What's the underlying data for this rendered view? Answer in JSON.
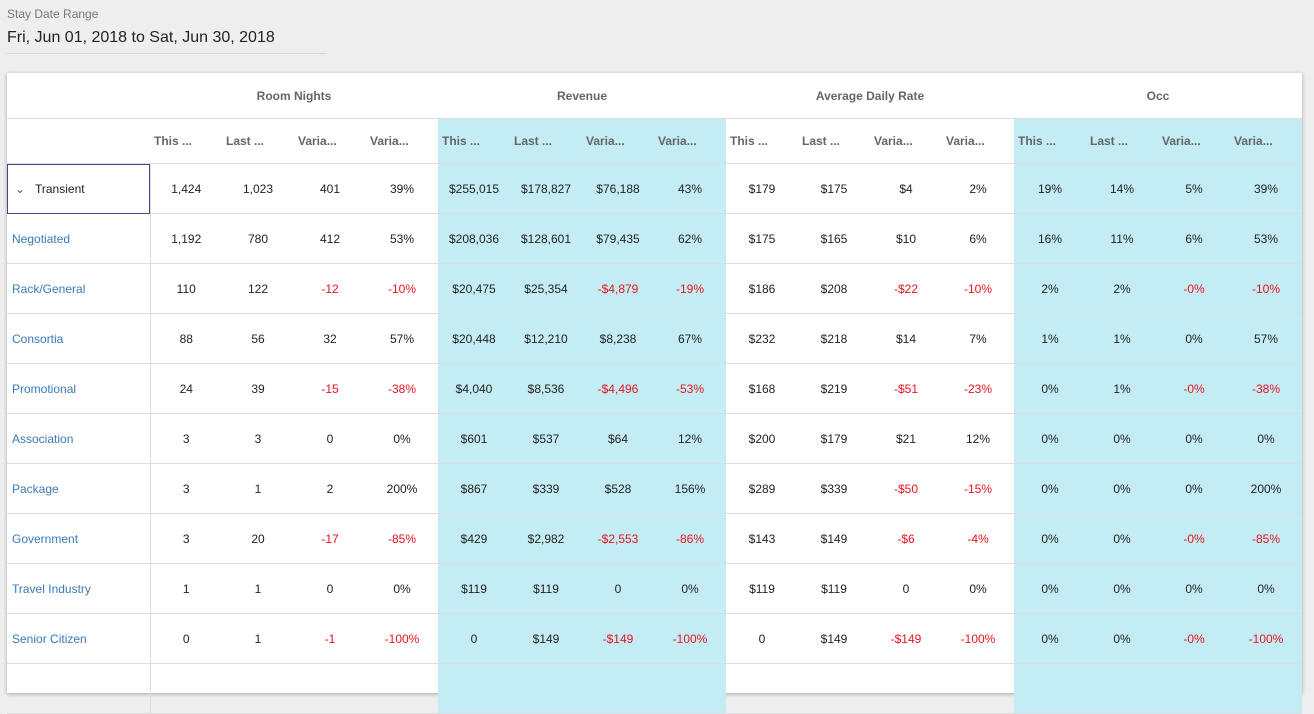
{
  "filter": {
    "label": "Stay Date Range",
    "value": "Fri, Jun 01, 2018 to Sat, Jun 30, 2018"
  },
  "groups": [
    "Room Nights",
    "Revenue",
    "Average Daily Rate",
    "Occ"
  ],
  "subheaders": [
    "This ...",
    "Last ...",
    "Varia...",
    "Varia..."
  ],
  "rows": [
    {
      "name": "Transient",
      "expanded": true,
      "values": [
        "1,424",
        "1,023",
        "401",
        "39%",
        "$255,015",
        "$178,827",
        "$76,188",
        "43%",
        "$179",
        "$175",
        "$4",
        "2%",
        "19%",
        "14%",
        "5%",
        "39%"
      ]
    },
    {
      "name": "Negotiated",
      "values": [
        "1,192",
        "780",
        "412",
        "53%",
        "$208,036",
        "$128,601",
        "$79,435",
        "62%",
        "$175",
        "$165",
        "$10",
        "6%",
        "16%",
        "11%",
        "6%",
        "53%"
      ]
    },
    {
      "name": "Rack/General",
      "values": [
        "110",
        "122",
        "-12",
        "-10%",
        "$20,475",
        "$25,354",
        "-$4,879",
        "-19%",
        "$186",
        "$208",
        "-$22",
        "-10%",
        "2%",
        "2%",
        "-0%",
        "-10%"
      ]
    },
    {
      "name": "Consortia",
      "values": [
        "88",
        "56",
        "32",
        "57%",
        "$20,448",
        "$12,210",
        "$8,238",
        "67%",
        "$232",
        "$218",
        "$14",
        "7%",
        "1%",
        "1%",
        "0%",
        "57%"
      ]
    },
    {
      "name": "Promotional",
      "values": [
        "24",
        "39",
        "-15",
        "-38%",
        "$4,040",
        "$8,536",
        "-$4,496",
        "-53%",
        "$168",
        "$219",
        "-$51",
        "-23%",
        "0%",
        "1%",
        "-0%",
        "-38%"
      ]
    },
    {
      "name": "Association",
      "values": [
        "3",
        "3",
        "0",
        "0%",
        "$601",
        "$537",
        "$64",
        "12%",
        "$200",
        "$179",
        "$21",
        "12%",
        "0%",
        "0%",
        "0%",
        "0%"
      ]
    },
    {
      "name": "Package",
      "values": [
        "3",
        "1",
        "2",
        "200%",
        "$867",
        "$339",
        "$528",
        "156%",
        "$289",
        "$339",
        "-$50",
        "-15%",
        "0%",
        "0%",
        "0%",
        "200%"
      ]
    },
    {
      "name": "Government",
      "values": [
        "3",
        "20",
        "-17",
        "-85%",
        "$429",
        "$2,982",
        "-$2,553",
        "-86%",
        "$143",
        "$149",
        "-$6",
        "-4%",
        "0%",
        "0%",
        "-0%",
        "-85%"
      ]
    },
    {
      "name": "Travel Industry",
      "values": [
        "1",
        "1",
        "0",
        "0%",
        "$119",
        "$119",
        "0",
        "0%",
        "$119",
        "$119",
        "0",
        "0%",
        "0%",
        "0%",
        "0%",
        "0%"
      ]
    },
    {
      "name": "Senior Citizen",
      "values": [
        "0",
        "1",
        "-1",
        "-100%",
        "0",
        "$149",
        "-$149",
        "-100%",
        "0",
        "$149",
        "-$149",
        "-100%",
        "0%",
        "0%",
        "-0%",
        "-100%"
      ]
    }
  ],
  "colors": {
    "highlight": "#c3ecf4",
    "negative": "#e8141d",
    "link": "#3a7ab8"
  }
}
